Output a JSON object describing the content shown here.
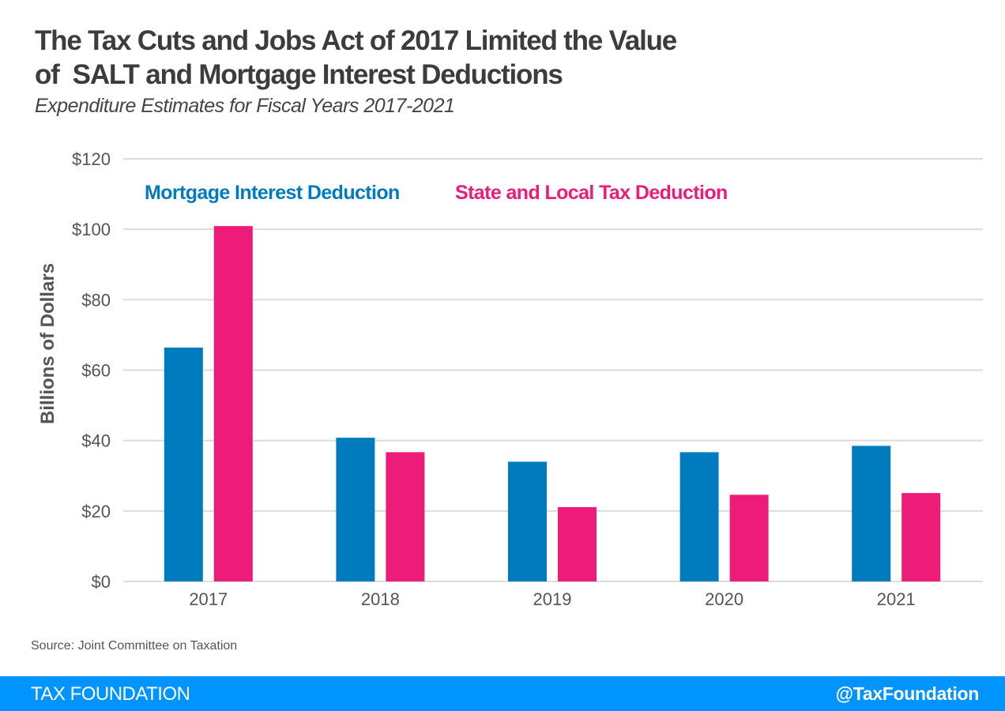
{
  "header": {
    "title_line1": "The Tax Cuts and Jobs Act of 2017 Limited the Value",
    "title_line2": "of  SALT and Mortgage Interest Deductions",
    "subtitle": "Expenditure Estimates for Fiscal Years 2017-2021"
  },
  "chart_data": {
    "type": "bar",
    "title": "The Tax Cuts and Jobs Act of 2017 Limited the Value of SALT and Mortgage Interest Deductions",
    "subtitle": "Expenditure Estimates for Fiscal Years 2017-2021",
    "xlabel": "",
    "ylabel": "Billions of Dollars",
    "categories": [
      "2017",
      "2018",
      "2019",
      "2020",
      "2021"
    ],
    "series": [
      {
        "name": "Mortgage Interest Deduction",
        "color": "#007bbd",
        "values": [
          66.4,
          40.8,
          34.0,
          36.7,
          38.5
        ]
      },
      {
        "name": "State and Local Tax Deduction",
        "color": "#ed1c79",
        "values": [
          100.9,
          36.7,
          21.1,
          24.6,
          25.1
        ]
      }
    ],
    "ylim": [
      0,
      120
    ],
    "yticks": [
      0,
      20,
      40,
      60,
      80,
      100,
      120
    ],
    "ytick_labels": [
      "$0",
      "$20",
      "$40",
      "$60",
      "$80",
      "$100",
      "$120"
    ],
    "grid": true,
    "legend_position": "top-left"
  },
  "source": "Source: Joint Committee on Taxation",
  "footer": {
    "brand": "TAX FOUNDATION",
    "handle": "@TaxFoundation"
  }
}
